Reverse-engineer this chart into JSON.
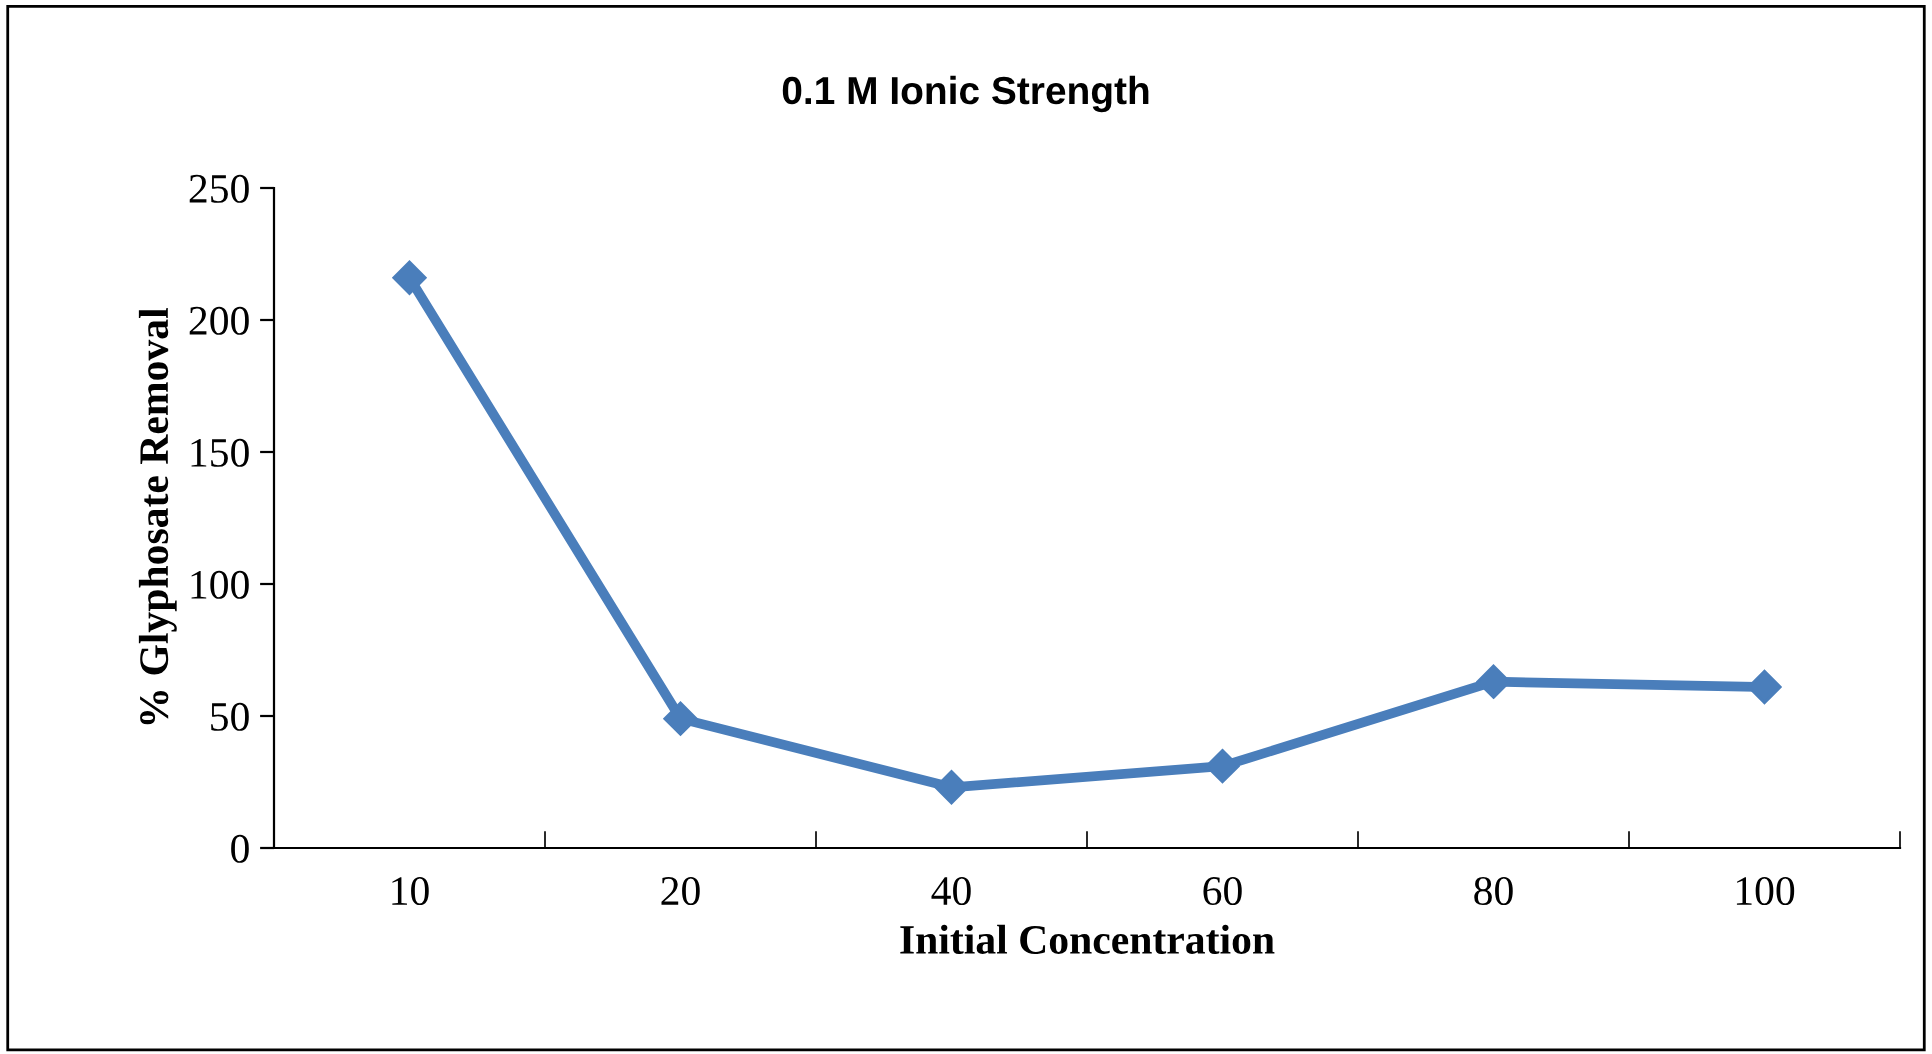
{
  "chart_data": {
    "type": "line",
    "title": "0.1 M Ionic Strength",
    "xlabel": "Initial Concentration",
    "ylabel": "% Glyphosate Removal",
    "categories": [
      "10",
      "20",
      "40",
      "60",
      "80",
      "100"
    ],
    "series": [
      {
        "color": "#4a7ebb",
        "values": [
          216,
          49,
          23,
          31,
          63,
          61
        ]
      }
    ],
    "ylim": [
      0,
      250
    ],
    "yticks": [
      0,
      50,
      100,
      150,
      200,
      250
    ],
    "grid": false,
    "legend": false,
    "marker": "diamond",
    "line_style": "solid"
  }
}
